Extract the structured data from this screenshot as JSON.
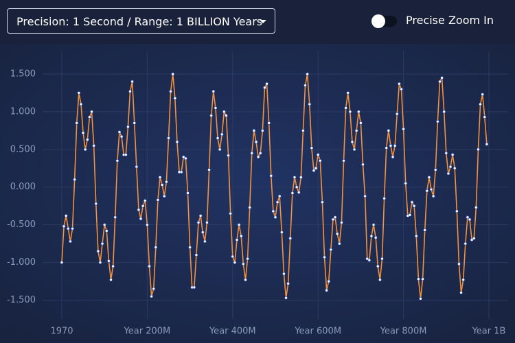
{
  "controls": {
    "precision_dropdown": "Precision: 1 Second / Range: 1 BILLION Years",
    "toggle_label": "Precise Zoom In"
  },
  "chart_data": {
    "type": "line",
    "x": [
      0,
      5,
      10,
      15,
      20,
      25,
      30,
      35,
      40,
      45,
      50,
      55,
      60,
      65,
      70,
      75,
      80,
      85,
      90,
      95,
      100,
      105,
      110,
      115,
      120,
      125,
      130,
      135,
      140,
      145,
      150,
      155,
      160,
      165,
      170,
      175,
      180,
      185,
      190,
      195,
      200,
      205,
      210,
      215,
      220,
      225,
      230,
      235,
      240,
      245,
      250,
      255,
      260,
      265,
      270,
      275,
      280,
      285,
      290,
      295,
      300,
      305,
      310,
      315,
      320,
      325,
      330,
      335,
      340,
      345,
      350,
      355,
      360,
      365,
      370,
      375,
      380,
      385,
      390,
      395,
      400,
      405,
      410,
      415,
      420,
      425,
      430,
      435,
      440,
      445,
      450,
      455,
      460,
      465,
      470,
      475,
      480,
      485,
      490,
      495,
      500,
      505,
      510,
      515,
      520,
      525,
      530,
      535,
      540,
      545,
      550,
      555,
      560,
      565,
      570,
      575,
      580,
      585,
      590,
      595,
      600,
      605,
      610,
      615,
      620,
      625,
      630,
      635,
      640,
      645,
      650,
      655,
      660,
      665,
      670,
      675,
      680,
      685,
      690,
      695,
      700,
      705,
      710,
      715,
      720,
      725,
      730,
      735,
      740,
      745,
      750,
      755,
      760,
      765,
      770,
      775,
      780,
      785,
      790,
      795,
      800,
      805,
      810,
      815,
      820,
      825,
      830,
      835,
      840,
      845,
      850,
      855,
      860,
      865,
      870,
      875,
      880,
      885,
      890,
      895,
      900,
      905,
      910,
      915,
      920,
      925,
      930,
      935,
      940,
      945,
      950,
      955,
      960,
      965,
      970,
      975,
      980,
      985,
      990,
      995
    ],
    "values": [
      -1.0,
      -0.52,
      -0.38,
      -0.55,
      -0.72,
      -0.55,
      0.1,
      0.85,
      1.25,
      1.1,
      0.72,
      0.5,
      0.63,
      0.93,
      1.0,
      0.55,
      -0.22,
      -0.85,
      -1.0,
      -0.75,
      -0.5,
      -0.58,
      -0.98,
      -1.23,
      -1.05,
      -0.4,
      0.35,
      0.73,
      0.67,
      0.43,
      0.43,
      0.8,
      1.27,
      1.4,
      0.85,
      0.27,
      -0.3,
      -0.42,
      -0.25,
      -0.18,
      -0.5,
      -1.05,
      -1.45,
      -1.35,
      -0.8,
      -0.17,
      0.13,
      0.03,
      -0.12,
      0.07,
      0.65,
      1.27,
      1.5,
      1.18,
      0.6,
      0.2,
      0.2,
      0.4,
      0.38,
      -0.08,
      -0.8,
      -1.33,
      -1.33,
      -0.9,
      -0.47,
      -0.38,
      -0.6,
      -0.72,
      -0.47,
      0.23,
      0.95,
      1.27,
      1.05,
      0.65,
      0.5,
      0.7,
      1.0,
      0.95,
      0.42,
      -0.35,
      -0.92,
      -1.0,
      -0.7,
      -0.5,
      -0.65,
      -1.02,
      -1.23,
      -0.95,
      -0.27,
      0.45,
      0.75,
      0.6,
      0.4,
      0.45,
      0.75,
      1.32,
      1.37,
      0.85,
      0.15,
      -0.32,
      -0.4,
      -0.2,
      -0.12,
      -0.6,
      -1.15,
      -1.47,
      -1.28,
      -0.68,
      -0.08,
      0.13,
      0.0,
      -0.07,
      0.13,
      0.75,
      1.35,
      1.5,
      1.1,
      0.52,
      0.22,
      0.25,
      0.43,
      0.35,
      -0.2,
      -0.93,
      -1.37,
      -1.25,
      -0.83,
      -0.43,
      -0.4,
      -0.62,
      -0.75,
      -0.47,
      0.35,
      1.05,
      1.25,
      1.0,
      0.6,
      0.5,
      0.75,
      1.0,
      0.85,
      0.3,
      -0.12,
      -0.95,
      -0.97,
      -0.65,
      -0.5,
      -0.67,
      -1.05,
      -1.23,
      -0.95,
      -0.15,
      0.52,
      0.75,
      0.55,
      0.4,
      0.55,
      0.97,
      1.37,
      1.3,
      0.77,
      0.05,
      -0.38,
      -0.37,
      -0.2,
      -0.25,
      -0.65,
      -1.22,
      -1.48,
      -1.22,
      -0.57,
      -0.05,
      0.13,
      -0.03,
      -0.12,
      0.23,
      0.87,
      1.4,
      1.45,
      1.0,
      0.45,
      0.18,
      0.27,
      0.43,
      0.25,
      -0.32,
      -1.02,
      -1.4,
      -1.23,
      -0.75,
      -0.4,
      -0.43,
      -0.7,
      -0.68,
      -0.27,
      0.5,
      1.1,
      1.23,
      0.93,
      0.57
    ],
    "color": "#f5923e",
    "marker_color": "#ffffff",
    "xlim": [
      -45,
      1045
    ],
    "xticks": [
      {
        "value": 0,
        "label": "1970"
      },
      {
        "value": 200,
        "label": "Year 200M"
      },
      {
        "value": 400,
        "label": "Year 400M"
      },
      {
        "value": 600,
        "label": "Year 600M"
      },
      {
        "value": 800,
        "label": "Year 800M"
      },
      {
        "value": 1000,
        "label": "Year 1B"
      }
    ],
    "ylim": [
      -1.75,
      1.8
    ],
    "yticks": [
      {
        "value": -1.5,
        "label": "-1.500"
      },
      {
        "value": -1,
        "label": "-1.000"
      },
      {
        "value": -0.5,
        "label": "-0.500"
      },
      {
        "value": 0,
        "label": "0.000"
      },
      {
        "value": 0.5,
        "label": "0.500"
      },
      {
        "value": 1,
        "label": "1.000"
      },
      {
        "value": 1.5,
        "label": "1.500"
      }
    ],
    "grid": true
  }
}
